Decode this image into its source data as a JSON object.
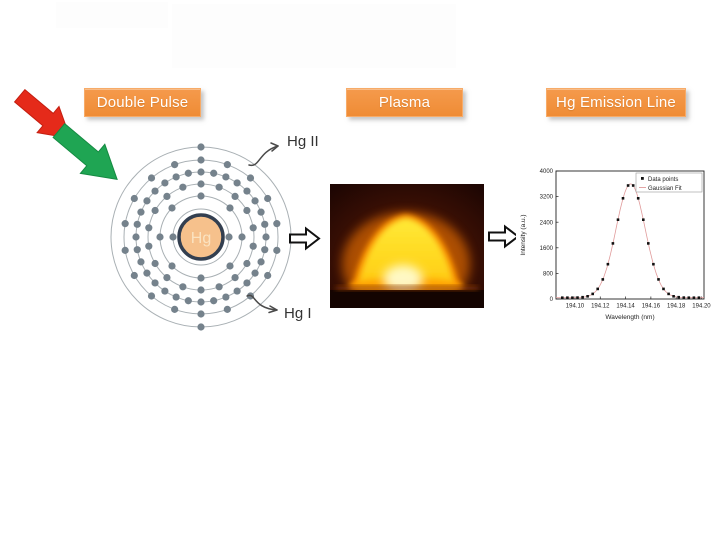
{
  "banners": {
    "double_pulse": "Double Pulse",
    "plasma": "Plasma",
    "hg_emission_line": "Hg Emission Line"
  },
  "atom": {
    "nucleus_label": "Hg",
    "shells": [
      2,
      8,
      18,
      32,
      18,
      2
    ],
    "label_top": "Hg II",
    "label_bottom": "Hg I"
  },
  "colors": {
    "banner_orange": "#EF8C35",
    "banner_text": "#FFFFFF",
    "arrow_red": "#E52A1A",
    "arrow_red_edge": "#C41E10",
    "arrow_green": "#1FA553",
    "arrow_green_edge": "#158A42",
    "shell_gray": "#A9B0B4",
    "electron_gray": "#75828C",
    "nucleus_fill": "#F6C18C",
    "nucleus_border": "#333F50",
    "nucleus_text": "#FBE3C1",
    "block_arrow_fill": "#FFFFFF",
    "block_arrow_stroke": "#111111",
    "curved_arrow": "#4A4A4A",
    "fit_line": "#E09B9B",
    "data_point": "#111111"
  },
  "chart_data": {
    "type": "scatter",
    "title": "",
    "xlabel": "Wavelength (nm)",
    "ylabel": "Intensity (a.u.)",
    "xlim": [
      194.085,
      194.202
    ],
    "ylim": [
      0,
      4000
    ],
    "xticks": [
      "194.10",
      "194.12",
      "194.14",
      "194.16",
      "194.18",
      "194.20"
    ],
    "yticks": [
      0,
      800,
      1600,
      2400,
      3200,
      4000
    ],
    "grid": false,
    "legend_position": "top-right",
    "legend": [
      "Data points",
      "Gaussian Fit"
    ],
    "series": [
      {
        "name": "Data points",
        "type": "scatter",
        "x": [
          194.09,
          194.094,
          194.098,
          194.102,
          194.106,
          194.11,
          194.114,
          194.118,
          194.122,
          194.126,
          194.13,
          194.134,
          194.138,
          194.142,
          194.146,
          194.15,
          194.154,
          194.158,
          194.162,
          194.166,
          194.17,
          194.174,
          194.178,
          194.182,
          194.186,
          194.19,
          194.194,
          194.198
        ],
        "y": [
          40,
          40,
          41,
          45,
          55,
          85,
          159,
          317,
          611,
          1086,
          1737,
          2479,
          3146,
          3547,
          3547,
          3146,
          2479,
          1737,
          1086,
          611,
          317,
          159,
          85,
          55,
          45,
          41,
          40,
          40
        ]
      },
      {
        "name": "Gaussian Fit",
        "type": "line",
        "fit": {
          "center": 194.144,
          "sigma": 0.0115,
          "amplitude": 3560,
          "baseline": 40
        }
      }
    ]
  }
}
